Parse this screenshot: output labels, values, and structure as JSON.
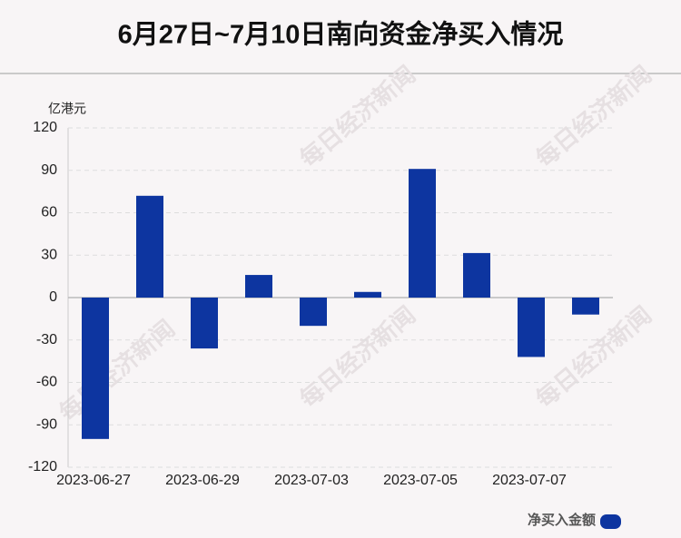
{
  "chart_data": {
    "type": "bar",
    "title": "6月27日~7月10日南向资金净买入情况",
    "y_label": "亿港元",
    "watermark": "每日经济新闻",
    "categories": [
      "2023-06-27",
      null,
      "2023-06-29",
      null,
      "2023-07-03",
      null,
      "2023-07-05",
      null,
      "2023-07-07",
      null
    ],
    "series": [
      {
        "name": "净买入金额",
        "color": "#0d35a0",
        "values": [
          -100,
          72,
          -36,
          16,
          -20,
          4,
          91,
          31.5,
          -42,
          -12
        ]
      }
    ],
    "ylim": [
      -120,
      120
    ],
    "yticks": [
      -120,
      -90,
      -60,
      -30,
      0,
      30,
      60,
      90,
      120
    ],
    "grid": true
  }
}
